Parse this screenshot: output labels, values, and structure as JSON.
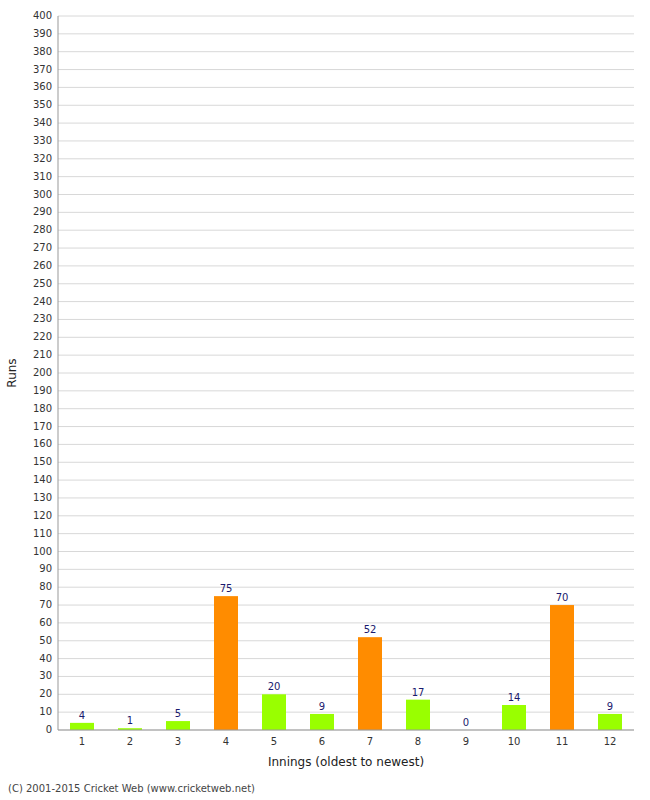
{
  "chart_data": {
    "type": "bar",
    "xlabel": "Innings (oldest to newest)",
    "ylabel": "Runs",
    "categories": [
      "1",
      "2",
      "3",
      "4",
      "5",
      "6",
      "7",
      "8",
      "9",
      "10",
      "11",
      "12"
    ],
    "values": [
      4,
      1,
      5,
      75,
      20,
      9,
      52,
      17,
      0,
      14,
      70,
      9
    ],
    "colors": [
      "#99ff00",
      "#99ff00",
      "#99ff00",
      "#ff8c00",
      "#99ff00",
      "#99ff00",
      "#ff8c00",
      "#99ff00",
      "#99ff00",
      "#99ff00",
      "#ff8c00",
      "#99ff00"
    ],
    "ylim": [
      0,
      400
    ],
    "yticks": [
      0,
      10,
      20,
      30,
      40,
      50,
      60,
      70,
      80,
      90,
      100,
      110,
      120,
      130,
      140,
      150,
      160,
      170,
      180,
      190,
      200,
      210,
      220,
      230,
      240,
      250,
      260,
      270,
      280,
      290,
      300,
      310,
      320,
      330,
      340,
      350,
      360,
      370,
      380,
      390,
      400
    ],
    "grid": true,
    "data_labels": true,
    "annotations": [
      "(C) 2001-2015 Cricket Web (www.cricketweb.net)"
    ]
  }
}
